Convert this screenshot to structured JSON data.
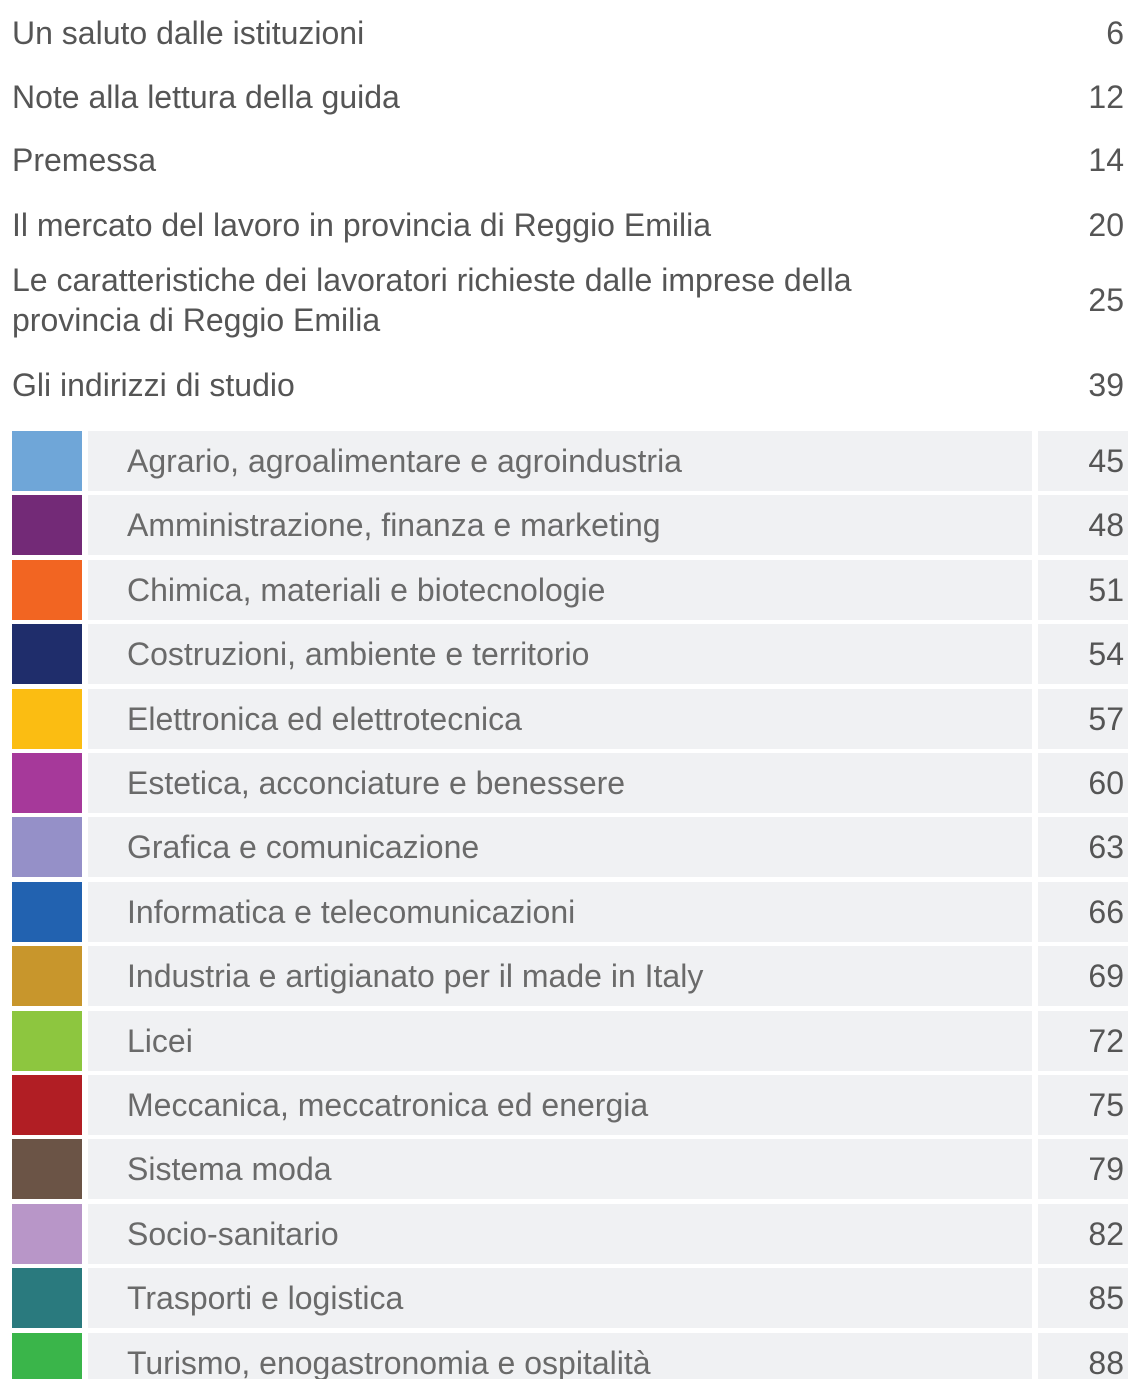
{
  "entries": [
    {
      "title": [
        "Un saluto dalle istituzioni"
      ],
      "page": "6"
    },
    {
      "title": [
        "Note alla lettura della guida"
      ],
      "page": "12"
    },
    {
      "title": [
        "Premessa"
      ],
      "page": "14"
    },
    {
      "title": [
        "Il mercato del lavoro in provincia di Reggio Emilia"
      ],
      "page": "20"
    },
    {
      "title": [
        "Le caratteristiche dei lavoratori richieste dalle imprese della",
        "provincia di Reggio Emilia"
      ],
      "page": "25"
    },
    {
      "title": [
        "Gli indirizzi di studio"
      ],
      "page": "39"
    }
  ],
  "sections": [
    {
      "title": "Agrario, agroalimentare e agroindustria",
      "page": "45",
      "color": "#6fa6d8"
    },
    {
      "title": "Amministrazione, finanza e marketing",
      "page": "48",
      "color": "#732a77"
    },
    {
      "title": "Chimica, materiali e biotecnologie",
      "page": "51",
      "color": "#f26522"
    },
    {
      "title": "Costruzioni, ambiente e territorio",
      "page": "54",
      "color": "#1f2d6b"
    },
    {
      "title": "Elettronica ed elettrotecnica",
      "page": "57",
      "color": "#fbbd12"
    },
    {
      "title": "Estetica, acconciature e benessere",
      "page": "60",
      "color": "#a6399a"
    },
    {
      "title": "Grafica e comunicazione",
      "page": "63",
      "color": "#9590c8"
    },
    {
      "title": "Informatica e telecomunicazioni",
      "page": "66",
      "color": "#2262b0"
    },
    {
      "title": "Industria e artigianato per il made in Italy",
      "page": "69",
      "color": "#c8962c"
    },
    {
      "title": "Licei",
      "page": "72",
      "color": "#8dc63f"
    },
    {
      "title": "Meccanica, meccatronica ed energia",
      "page": "75",
      "color": "#b11e24"
    },
    {
      "title": "Sistema moda",
      "page": "79",
      "color": "#6b5446"
    },
    {
      "title": "Socio-sanitario",
      "page": "82",
      "color": "#b896c8"
    },
    {
      "title": "Trasporti e logistica",
      "page": "85",
      "color": "#2a7a7e"
    },
    {
      "title": "Turismo, enogastronomia e ospitalità",
      "page": "88",
      "color": "#3ab54a"
    }
  ]
}
